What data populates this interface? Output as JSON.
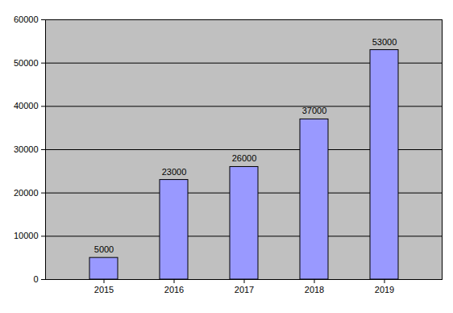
{
  "chart_data": {
    "type": "bar",
    "categories": [
      "2015",
      "2016",
      "2017",
      "2018",
      "2019"
    ],
    "values": [
      5000,
      23000,
      26000,
      37000,
      53000
    ],
    "color": "#9999ff",
    "ylim": [
      0,
      60000
    ],
    "yticks": [
      0,
      10000,
      20000,
      30000,
      40000,
      50000,
      60000
    ],
    "grid": true,
    "data_labels": true
  }
}
